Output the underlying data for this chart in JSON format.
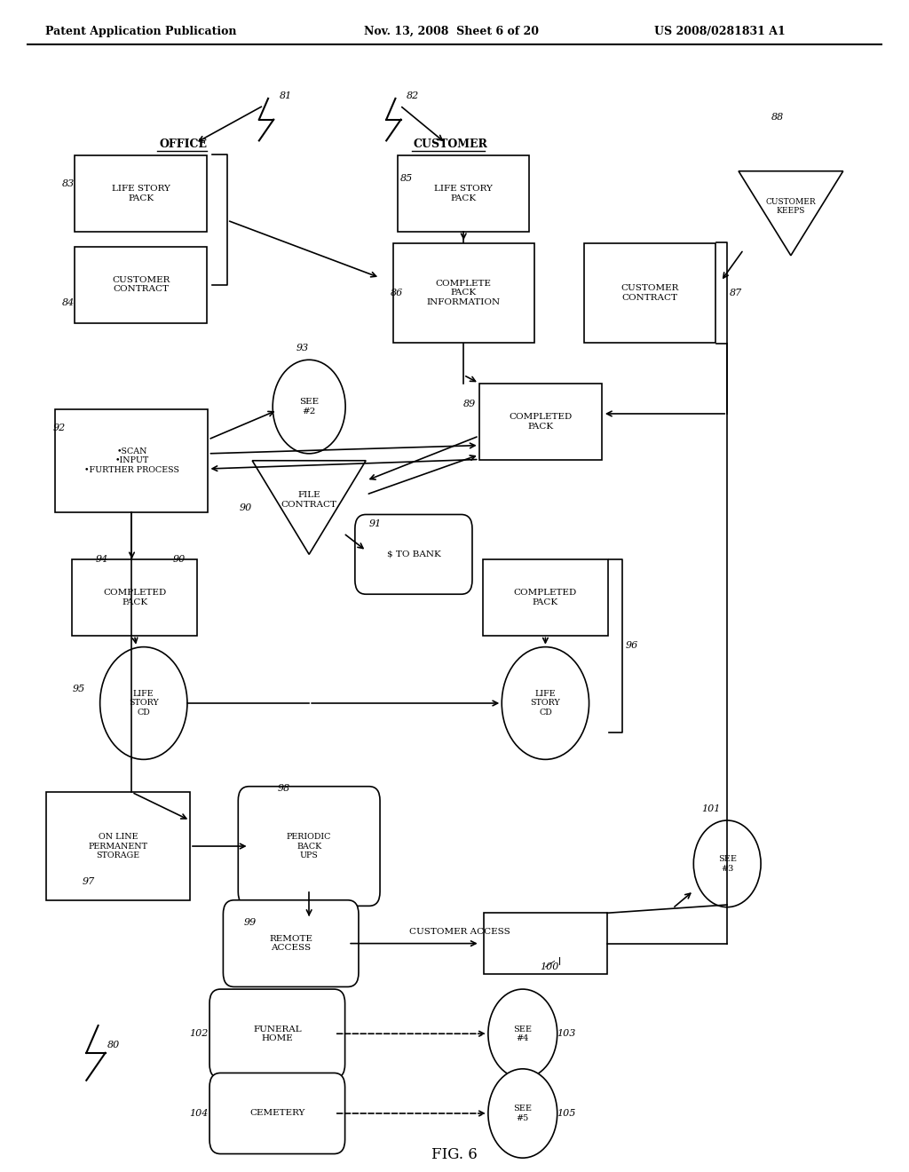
{
  "bg_color": "#ffffff",
  "header_left": "Patent Application Publication",
  "header_mid": "Nov. 13, 2008  Sheet 6 of 20",
  "header_right": "US 2008/0281831 A1",
  "figure_label": "FIG. 6"
}
